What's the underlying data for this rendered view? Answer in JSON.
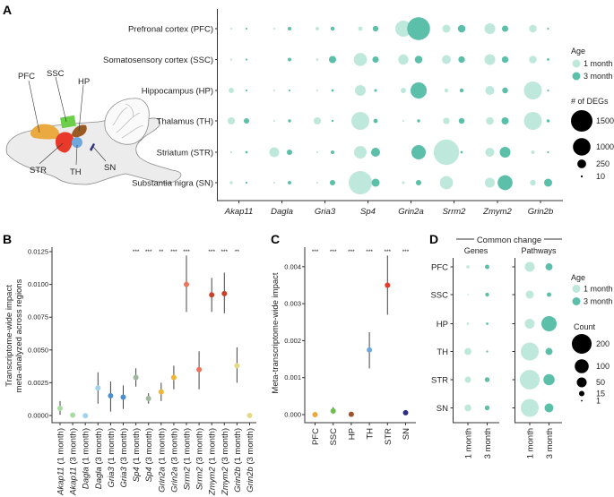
{
  "panel_labels": {
    "a": "A",
    "b": "B",
    "c": "C",
    "d": "D"
  },
  "colors": {
    "age_1_month": "#bfe8dc",
    "age_3_month": "#5bbfa9"
  },
  "brain_diagram": {
    "labels": [
      "PFC",
      "SSC",
      "HP",
      "STR",
      "TH",
      "SN"
    ],
    "region_colors": {
      "PFC": "#eba941",
      "SSC": "#6ccf4a",
      "HP": "#9b5a22",
      "STR": "#e8392a",
      "TH": "#6fa8dc",
      "SN": "#2e2f7f"
    }
  },
  "chart_data": [
    {
      "panel": "A",
      "type": "scatter",
      "subtype": "dot-size-matrix",
      "categories": [
        "Akap11",
        "Dagla",
        "Gria3",
        "Sp4",
        "Grin2a",
        "Srrm2",
        "Zmym2",
        "Grin2b"
      ],
      "rows": [
        "Prefronal cortex (PFC)",
        "Somatosensory cortex (SSC)",
        "Hippocampus (HP)",
        "Thalamus (TH)",
        "Striatum (STR)",
        "Substantia nigra (SN)"
      ],
      "legend": {
        "age_title": "Age",
        "ages": [
          "1 month",
          "3 month"
        ],
        "size_title": "# of DEGs",
        "size_breaks": [
          1500,
          1000,
          250,
          10
        ]
      },
      "size_values_1_month": [
        [
          5,
          10,
          40,
          60,
          850,
          210,
          375,
          190
        ],
        [
          15,
          0,
          20,
          560,
          340,
          260,
          375,
          190
        ],
        [
          95,
          5,
          5,
          375,
          95,
          50,
          260,
          1040
        ],
        [
          170,
          10,
          170,
          1040,
          8,
          140,
          190,
          1040
        ],
        [
          15,
          315,
          10,
          510,
          0,
          2100,
          260,
          40
        ],
        [
          30,
          10,
          5,
          1760,
          25,
          560,
          315,
          110
        ]
      ],
      "size_values_3_month": [
        [
          10,
          40,
          50,
          100,
          1700,
          190,
          130,
          10
        ],
        [
          10,
          40,
          170,
          130,
          190,
          140,
          140,
          20
        ],
        [
          5,
          5,
          20,
          25,
          850,
          50,
          110,
          5
        ],
        [
          95,
          30,
          15,
          60,
          30,
          110,
          170,
          30
        ],
        [
          20,
          95,
          40,
          260,
          670,
          20,
          375,
          5
        ],
        [
          5,
          40,
          95,
          210,
          95,
          0,
          720,
          210
        ]
      ]
    },
    {
      "panel": "B",
      "type": "scatter",
      "subtype": "point-with-error-bars",
      "ylabel": [
        "Transcriptome-wide impact",
        "meta-analyzed across regions"
      ],
      "ylim": [
        0,
        0.0125
      ],
      "yticks": [
        "0.0000",
        "0.0025",
        "0.0050",
        "0.0075",
        "0.0100",
        "0.0125"
      ],
      "points": [
        {
          "gene": "Akap11",
          "age": " (1 month)",
          "value": 0.00055,
          "low": 5e-05,
          "high": 0.0011,
          "color": "#a8dba0",
          "sig": ""
        },
        {
          "gene": "Akap11",
          "age": " (3 month)",
          "value": 3e-05,
          "low": null,
          "high": null,
          "color": "#a8dba0",
          "sig": ""
        },
        {
          "gene": "Dagla",
          "age": " (1 month)",
          "value": -2e-05,
          "low": null,
          "high": null,
          "color": "#9fd3ee",
          "sig": ""
        },
        {
          "gene": "Dagla",
          "age": " (3 month)",
          "value": 0.0021,
          "low": 0.0009,
          "high": 0.0033,
          "color": "#9fd3ee",
          "sig": ""
        },
        {
          "gene": "Gria3",
          "age": " (1 month)",
          "value": 0.0015,
          "low": 0.0003,
          "high": 0.0026,
          "color": "#4a8fcf",
          "sig": ""
        },
        {
          "gene": "Gria3",
          "age": " (3 month)",
          "value": 0.0014,
          "low": 0.0005,
          "high": 0.0023,
          "color": "#4a8fcf",
          "sig": ""
        },
        {
          "gene": "Sp4",
          "age": " (1 month)",
          "value": 0.0029,
          "low": 0.0022,
          "high": 0.0036,
          "color": "#9fb79f",
          "sig": "***"
        },
        {
          "gene": "Sp4",
          "age": " (3 month)",
          "value": 0.0013,
          "low": 0.0009,
          "high": 0.0017,
          "color": "#9fb79f",
          "sig": "***"
        },
        {
          "gene": "Grin2a",
          "age": " (1 month)",
          "value": 0.0018,
          "low": 0.0011,
          "high": 0.0025,
          "color": "#f2b531",
          "sig": "**"
        },
        {
          "gene": "Grin2a",
          "age": " (3 month)",
          "value": 0.0029,
          "low": 0.002,
          "high": 0.0038,
          "color": "#f2b531",
          "sig": "***"
        },
        {
          "gene": "Srrm2",
          "age": " (1 month)",
          "value": 0.01,
          "low": 0.0079,
          "high": 0.0122,
          "color": "#f0735e",
          "sig": "***"
        },
        {
          "gene": "Srrm2",
          "age": " (3 month)",
          "value": 0.0035,
          "low": 0.002,
          "high": 0.0049,
          "color": "#f0735e",
          "sig": ""
        },
        {
          "gene": "Zmym2",
          "age": " (1 month)",
          "value": 0.0092,
          "low": 0.0079,
          "high": 0.0105,
          "color": "#c9402a",
          "sig": "***"
        },
        {
          "gene": "Zmym2",
          "age": " (3 month)",
          "value": 0.0093,
          "low": 0.0078,
          "high": 0.0109,
          "color": "#c9402a",
          "sig": "***"
        },
        {
          "gene": "Grin2b",
          "age": " (1 month)",
          "value": 0.0038,
          "low": 0.0025,
          "high": 0.0052,
          "color": "#e3d98a",
          "sig": "**"
        },
        {
          "gene": "Grin2b",
          "age": " (3 month)",
          "value": 0.0,
          "low": null,
          "high": null,
          "color": "#e3d98a",
          "sig": ""
        }
      ]
    },
    {
      "panel": "C",
      "type": "scatter",
      "subtype": "point-with-error-bars",
      "ylabel": "Meta-transcriptome-wide impact",
      "ylim": [
        0,
        0.0042
      ],
      "yticks": [
        "0.000",
        "0.001",
        "0.002",
        "0.003",
        "0.004"
      ],
      "points": [
        {
          "region": "PFC",
          "value": 0.0,
          "low": null,
          "high": null,
          "color": "#f0a830",
          "sig": "***"
        },
        {
          "region": "SSC",
          "value": 0.0001,
          "low": 2e-05,
          "high": 0.0002,
          "color": "#6cc04a",
          "sig": "***"
        },
        {
          "region": "HP",
          "value": 1e-05,
          "low": null,
          "high": null,
          "color": "#a0522d",
          "sig": "***"
        },
        {
          "region": "TH",
          "value": 0.00175,
          "low": 0.00125,
          "high": 0.00223,
          "color": "#6fa8dc",
          "sig": "***"
        },
        {
          "region": "STR",
          "value": 0.0035,
          "low": 0.0027,
          "high": 0.0043,
          "color": "#e8392a",
          "sig": "***"
        },
        {
          "region": "SN",
          "value": 5e-05,
          "low": null,
          "high": null,
          "color": "#2e2f7f",
          "sig": "***"
        }
      ]
    },
    {
      "panel": "D",
      "type": "scatter",
      "subtype": "dot-size-matrix",
      "header": "Common change",
      "facets": [
        "Genes",
        "Pathways"
      ],
      "rows": [
        "PFC",
        "SSC",
        "HP",
        "TH",
        "STR",
        "SN"
      ],
      "categories": [
        "1 month",
        "3 month"
      ],
      "legend": {
        "age_title": "Age",
        "ages": [
          "1 month",
          "3 month"
        ],
        "size_title": "Count",
        "size_breaks": [
          200,
          100,
          50,
          15,
          1
        ]
      },
      "genes": [
        [
          5,
          10
        ],
        [
          1,
          8
        ],
        [
          3,
          3
        ],
        [
          26,
          2
        ],
        [
          20,
          12
        ],
        [
          24,
          12
        ]
      ],
      "pathways": [
        [
          50,
          26
        ],
        [
          33,
          10
        ],
        [
          50,
          120
        ],
        [
          165,
          26
        ],
        [
          200,
          65
        ],
        [
          165,
          41
        ]
      ]
    }
  ]
}
